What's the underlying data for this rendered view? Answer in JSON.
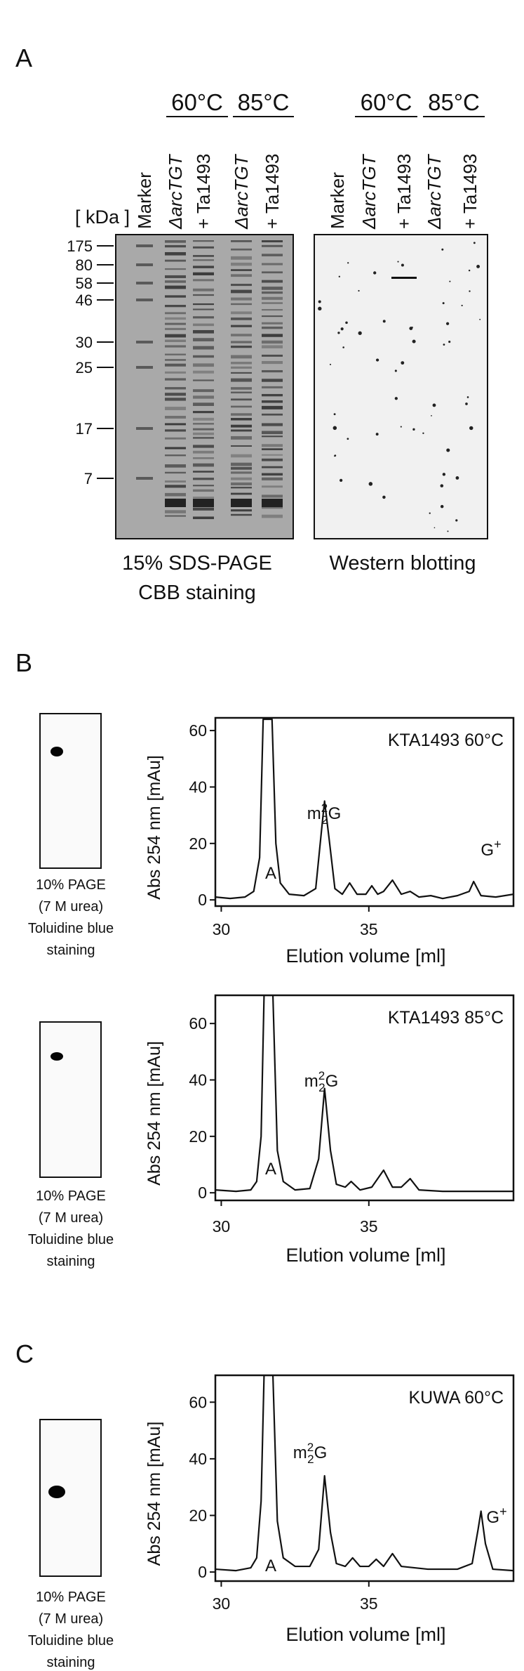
{
  "panel_a": {
    "label": "A",
    "sds_temps": [
      "60°C",
      "85°C"
    ],
    "western_temps": [
      "60°C",
      "85°C"
    ],
    "sds_lanes": [
      "Marker",
      "ΔarcTGT",
      "+ Ta1493",
      "ΔarcTGT",
      "+ Ta1493"
    ],
    "western_lanes": [
      "Marker",
      "ΔarcTGT",
      "+ Ta1493",
      "ΔarcTGT",
      "+ Ta1493"
    ],
    "kda_label": "[ kDa ]",
    "markers": [
      175,
      80,
      58,
      46,
      30,
      25,
      17,
      7
    ],
    "sds_caption": [
      "15% SDS-PAGE",
      "CBB staining"
    ],
    "western_caption": [
      "Western blotting"
    ]
  },
  "panel_b": {
    "label": "B"
  },
  "panel_c": {
    "label": "C"
  },
  "gels": [
    {
      "caption": [
        "10% PAGE",
        "(7 M urea)",
        "Toluidine blue",
        "staining"
      ]
    },
    {
      "caption": [
        "10% PAGE",
        "(7 M urea)",
        "Toluidine blue",
        "staining"
      ]
    },
    {
      "caption": [
        "10% PAGE",
        "(7 M urea)",
        "Toluidine blue",
        "staining"
      ]
    }
  ],
  "chart_data": [
    {
      "type": "line",
      "title": "KTA1493 60°C",
      "x_label": "Elution volume [ml]",
      "y_label": "Abs 254 nm [mAu]",
      "color": "#111111",
      "xlim": [
        29.8,
        39.9
      ],
      "ylim": [
        -2.2,
        64.5
      ],
      "xticks": [
        30,
        35
      ],
      "yticks": [
        0,
        20,
        40,
        60
      ],
      "peak_labels": [
        [
          "A"
        ],
        [
          "m",
          "2",
          "2",
          "G"
        ],
        [
          "G",
          "+"
        ]
      ],
      "x": [
        29.8,
        30.3,
        30.8,
        31.1,
        31.3,
        31.42,
        31.72,
        31.85,
        32.0,
        32.3,
        32.8,
        33.2,
        33.4,
        33.5,
        33.65,
        33.85,
        34.1,
        34.35,
        34.6,
        34.9,
        35.1,
        35.3,
        35.5,
        35.8,
        36.1,
        36.4,
        36.7,
        37.1,
        37.5,
        38.0,
        38.4,
        38.55,
        38.8,
        39.3,
        39.9
      ],
      "values": [
        1,
        0.5,
        1,
        3,
        15,
        64,
        64,
        20,
        6,
        2,
        1.5,
        4,
        25,
        35,
        22,
        4,
        2,
        6,
        2,
        2,
        5,
        2,
        3,
        7,
        2,
        3,
        1,
        1.5,
        0.5,
        1.5,
        3,
        6.5,
        1.5,
        1,
        2
      ]
    },
    {
      "type": "line",
      "title": "KTA1493 85°C",
      "x_label": "Elution volume [ml]",
      "y_label": "Abs 254 nm [mAu]",
      "color": "#111111",
      "xlim": [
        29.8,
        39.9
      ],
      "ylim": [
        -2.7,
        70
      ],
      "xticks": [
        30,
        35
      ],
      "yticks": [
        0,
        20,
        40,
        60
      ],
      "peak_labels": [
        [
          "A"
        ],
        [
          "m",
          "2",
          "2",
          "G"
        ]
      ],
      "x": [
        29.8,
        30.5,
        31.0,
        31.2,
        31.35,
        31.45,
        31.75,
        31.9,
        32.1,
        32.5,
        33.0,
        33.3,
        33.5,
        33.7,
        33.9,
        34.2,
        34.4,
        34.7,
        35.1,
        35.5,
        35.8,
        36.1,
        36.4,
        36.7,
        37.5,
        38.5,
        39.9
      ],
      "values": [
        1,
        0.5,
        1,
        4,
        20,
        70,
        70,
        15,
        4,
        1,
        1.5,
        12,
        37,
        15,
        3,
        2,
        4,
        1,
        2,
        8,
        2,
        2,
        5,
        1,
        0.5,
        0.5,
        0.5
      ]
    },
    {
      "type": "line",
      "title": "KUWA 60°C",
      "x_label": "Elution volume [ml]",
      "y_label": "Abs 254 nm [mAu]",
      "color": "#111111",
      "xlim": [
        29.8,
        39.9
      ],
      "ylim": [
        -3.2,
        69.5
      ],
      "xticks": [
        30,
        35
      ],
      "yticks": [
        0,
        20,
        40,
        60
      ],
      "peak_labels": [
        [
          "A"
        ],
        [
          "m",
          "2",
          "2",
          "G"
        ],
        [
          "G",
          "+"
        ]
      ],
      "x": [
        29.8,
        30.5,
        31.0,
        31.2,
        31.35,
        31.45,
        31.75,
        31.9,
        32.1,
        32.5,
        33.0,
        33.3,
        33.5,
        33.7,
        33.9,
        34.2,
        34.45,
        34.7,
        35.0,
        35.25,
        35.5,
        35.8,
        36.1,
        37.0,
        38.0,
        38.5,
        38.7,
        38.8,
        38.95,
        39.2,
        39.9
      ],
      "values": [
        1,
        0.5,
        1.5,
        5,
        25,
        69.5,
        69.5,
        18,
        5,
        2,
        2,
        8,
        34,
        14,
        3,
        2,
        5,
        2,
        2,
        4.5,
        2,
        6.5,
        2,
        1,
        1,
        3,
        15,
        21.5,
        10,
        1,
        0.5
      ]
    }
  ]
}
